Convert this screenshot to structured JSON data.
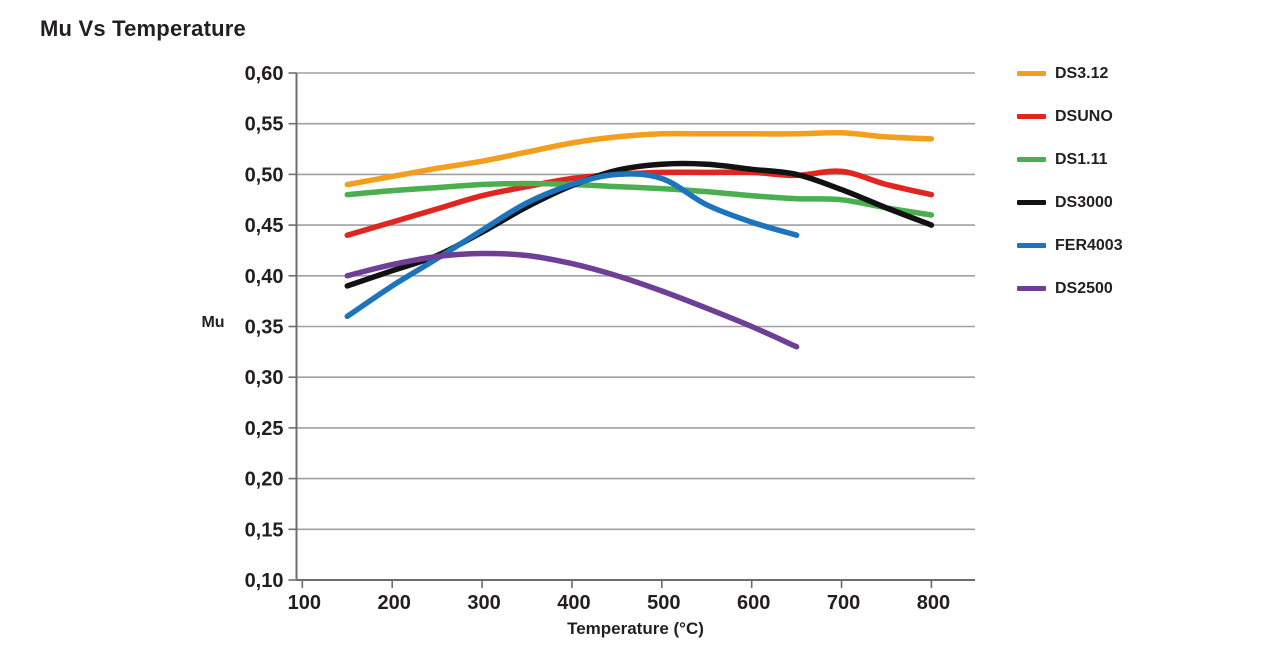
{
  "chart_data": {
    "type": "line",
    "title": "Mu Vs Temperature",
    "xlabel": "Temperature (°C)",
    "ylabel": "Mu",
    "decimal_separator": ",",
    "grid": "horizontal",
    "legend_position": "right",
    "xlim": [
      93.5,
      848.5
    ],
    "ylim": [
      0.1,
      0.6
    ],
    "x_ticks": {
      "values": [
        100,
        200,
        300,
        400,
        500,
        600,
        700,
        800
      ],
      "labels": [
        "100",
        "200",
        "300",
        "400",
        "500",
        "600",
        "700",
        "800"
      ]
    },
    "y_ticks": {
      "values": [
        0.6,
        0.55,
        0.5,
        0.45,
        0.4,
        0.35,
        0.3,
        0.25,
        0.2,
        0.15,
        0.1
      ],
      "labels": [
        "0,60",
        "0,55",
        "0,50",
        "0,45",
        "0,40",
        "0,35",
        "0,30",
        "0,25",
        "0,20",
        "0,15",
        "0,10"
      ]
    },
    "colors": {
      "axis": "#6d6d6d",
      "grid": "#a0a0a0",
      "text": "#231F20"
    },
    "series": [
      {
        "name": "DS3.12",
        "color": "#F49E1E",
        "x": [
          150,
          200,
          250,
          300,
          350,
          400,
          450,
          500,
          550,
          600,
          650,
          700,
          750,
          800
        ],
        "y": [
          0.49,
          0.498,
          0.506,
          0.513,
          0.522,
          0.531,
          0.537,
          0.54,
          0.54,
          0.54,
          0.54,
          0.541,
          0.537,
          0.535
        ]
      },
      {
        "name": "DSUNO",
        "color": "#E12520",
        "x": [
          150,
          200,
          250,
          300,
          350,
          400,
          450,
          500,
          550,
          600,
          650,
          700,
          750,
          800
        ],
        "y": [
          0.44,
          0.453,
          0.466,
          0.479,
          0.488,
          0.496,
          0.5,
          0.502,
          0.502,
          0.502,
          0.499,
          0.503,
          0.49,
          0.48
        ]
      },
      {
        "name": "DS1.11",
        "color": "#4BAE4F",
        "x": [
          150,
          200,
          250,
          300,
          350,
          400,
          450,
          500,
          550,
          600,
          650,
          700,
          750,
          800
        ],
        "y": [
          0.48,
          0.484,
          0.487,
          0.49,
          0.491,
          0.49,
          0.488,
          0.486,
          0.483,
          0.479,
          0.476,
          0.475,
          0.467,
          0.46
        ]
      },
      {
        "name": "DS3000",
        "color": "#121212",
        "x": [
          150,
          200,
          250,
          300,
          350,
          400,
          450,
          500,
          550,
          600,
          650,
          700,
          750,
          800
        ],
        "y": [
          0.39,
          0.405,
          0.42,
          0.443,
          0.468,
          0.489,
          0.504,
          0.51,
          0.51,
          0.505,
          0.5,
          0.485,
          0.467,
          0.45
        ]
      },
      {
        "name": "FER4003",
        "color": "#1C75BC",
        "x": [
          150,
          200,
          250,
          300,
          350,
          400,
          450,
          500,
          550,
          600,
          650
        ],
        "y": [
          0.36,
          0.39,
          0.417,
          0.445,
          0.472,
          0.49,
          0.5,
          0.496,
          0.47,
          0.453,
          0.44
        ]
      },
      {
        "name": "DS2500",
        "color": "#6F3F98",
        "x": [
          150,
          200,
          250,
          300,
          350,
          400,
          450,
          500,
          550,
          600,
          650
        ],
        "y": [
          0.4,
          0.411,
          0.419,
          0.422,
          0.42,
          0.412,
          0.4,
          0.385,
          0.368,
          0.35,
          0.33
        ]
      }
    ]
  }
}
